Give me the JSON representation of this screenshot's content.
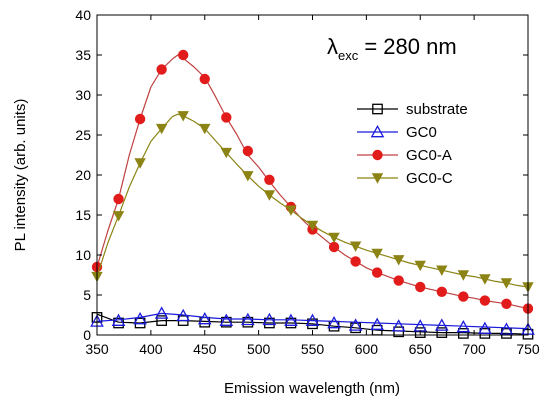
{
  "chart_data": {
    "type": "line",
    "xlabel": "Emission wavelength (nm)",
    "ylabel": "PL intensity (arb. units)",
    "xlim": [
      350,
      750
    ],
    "ylim": [
      0,
      40
    ],
    "xticks": [
      350,
      400,
      450,
      500,
      550,
      600,
      650,
      700,
      750
    ],
    "yticks": [
      0,
      5,
      10,
      15,
      20,
      25,
      30,
      35,
      40
    ],
    "annotation": {
      "symbol": "λ",
      "subscript": "exc",
      "text": " = 280 nm"
    },
    "legend_position": "right",
    "series": [
      {
        "name": "substrate",
        "marker": "open-square",
        "color": "#000000",
        "x": [
          350,
          370,
          390,
          410,
          430,
          450,
          470,
          490,
          510,
          530,
          550,
          570,
          590,
          610,
          630,
          650,
          670,
          690,
          710,
          730,
          750
        ],
        "y": [
          2.6,
          1.6,
          1.5,
          1.8,
          1.8,
          1.7,
          1.6,
          1.6,
          1.5,
          1.5,
          1.4,
          1.1,
          0.9,
          0.6,
          0.5,
          0.4,
          0.3,
          0.3,
          0.2,
          0.2,
          0.1
        ],
        "marker_x": [
          350,
          370,
          390,
          410,
          430,
          450,
          470,
          490,
          510,
          530,
          550,
          570,
          590,
          610,
          630,
          650,
          670,
          690,
          710,
          730,
          750
        ],
        "marker_y": [
          2.2,
          1.5,
          1.5,
          1.8,
          1.8,
          1.6,
          1.6,
          1.6,
          1.5,
          1.5,
          1.4,
          1.1,
          0.9,
          0.6,
          0.4,
          0.3,
          0.3,
          0.2,
          0.2,
          0.2,
          0.1
        ]
      },
      {
        "name": "GC0",
        "marker": "open-triangle",
        "color": "#1a1adc",
        "x": [
          350,
          370,
          390,
          410,
          430,
          450,
          470,
          490,
          510,
          530,
          550,
          570,
          590,
          610,
          630,
          650,
          670,
          690,
          710,
          730,
          750
        ],
        "y": [
          1.7,
          1.9,
          2.2,
          2.7,
          2.5,
          2.2,
          2.0,
          2.0,
          1.9,
          1.9,
          1.8,
          1.7,
          1.6,
          1.5,
          1.4,
          1.3,
          1.2,
          1.1,
          1.0,
          0.9,
          0.8
        ],
        "marker_x": [
          350,
          370,
          390,
          410,
          430,
          450,
          470,
          490,
          510,
          530,
          550,
          570,
          590,
          610,
          630,
          650,
          670,
          690,
          710,
          730,
          750
        ],
        "marker_y": [
          1.7,
          1.8,
          2.0,
          2.7,
          2.4,
          2.0,
          1.8,
          1.9,
          1.9,
          1.8,
          1.8,
          1.5,
          1.2,
          1.3,
          1.1,
          1.1,
          1.2,
          1.0,
          0.8,
          0.7,
          0.7
        ]
      },
      {
        "name": "GC0-A",
        "marker": "filled-circle",
        "color": "#e21b1b",
        "line_color": "#c04040",
        "x": [
          350,
          360,
          370,
          380,
          390,
          400,
          410,
          420,
          425,
          430,
          440,
          450,
          460,
          470,
          480,
          490,
          500,
          510,
          520,
          530,
          540,
          550,
          560,
          570,
          580,
          590,
          600,
          610,
          620,
          630,
          640,
          650,
          660,
          670,
          680,
          690,
          700,
          710,
          720,
          730,
          740,
          750
        ],
        "y": [
          8.5,
          13,
          17,
          22.5,
          27,
          31,
          33.2,
          34.5,
          35,
          34.6,
          33.5,
          32.2,
          29.8,
          27.2,
          25,
          22.5,
          21,
          19.2,
          17.5,
          16,
          14.5,
          13.2,
          12.1,
          11,
          10,
          9.2,
          8.4,
          7.8,
          7.3,
          6.8,
          6.4,
          6.0,
          5.7,
          5.4,
          5.1,
          4.8,
          4.6,
          4.3,
          4.1,
          3.9,
          3.6,
          3.3
        ],
        "marker_x": [
          350,
          370,
          390,
          410,
          430,
          450,
          470,
          490,
          510,
          530,
          550,
          570,
          590,
          610,
          630,
          650,
          670,
          690,
          710,
          730,
          750
        ],
        "marker_y": [
          8.5,
          17,
          27,
          33.2,
          35,
          32,
          27.2,
          23,
          19.4,
          16,
          13.2,
          11,
          9.2,
          7.8,
          6.8,
          6.0,
          5.4,
          4.8,
          4.3,
          3.9,
          3.3
        ]
      },
      {
        "name": "GC0-C",
        "marker": "filled-triangle-down",
        "color": "#8b8313",
        "line_color": "#8b8313",
        "x": [
          350,
          360,
          370,
          380,
          390,
          400,
          410,
          420,
          425,
          430,
          440,
          450,
          460,
          470,
          480,
          490,
          500,
          510,
          520,
          530,
          540,
          550,
          560,
          570,
          580,
          590,
          600,
          610,
          620,
          630,
          640,
          650,
          660,
          670,
          680,
          690,
          700,
          710,
          720,
          730,
          740,
          750
        ],
        "y": [
          7.3,
          11.5,
          14.9,
          18.5,
          21.5,
          24.2,
          25.8,
          27.3,
          27.6,
          27.4,
          26.7,
          25.8,
          24.3,
          22.8,
          21.3,
          19.9,
          18.6,
          17.5,
          16.5,
          15.6,
          14.6,
          13.7,
          12.9,
          12.2,
          11.6,
          11.1,
          10.6,
          10.2,
          9.8,
          9.4,
          9.0,
          8.7,
          8.4,
          8.1,
          7.8,
          7.5,
          7.3,
          7.0,
          6.7,
          6.5,
          6.2,
          6.0
        ],
        "marker_x": [
          350,
          370,
          390,
          410,
          430,
          450,
          470,
          490,
          510,
          530,
          550,
          570,
          590,
          610,
          630,
          650,
          670,
          690,
          710,
          730,
          750
        ],
        "marker_y": [
          7.3,
          14.9,
          21.5,
          25.8,
          27.4,
          25.8,
          22.8,
          19.9,
          17.5,
          15.6,
          13.7,
          12.2,
          11.1,
          10.2,
          9.4,
          8.7,
          8.1,
          7.5,
          7.0,
          6.5,
          6.0
        ]
      }
    ]
  }
}
